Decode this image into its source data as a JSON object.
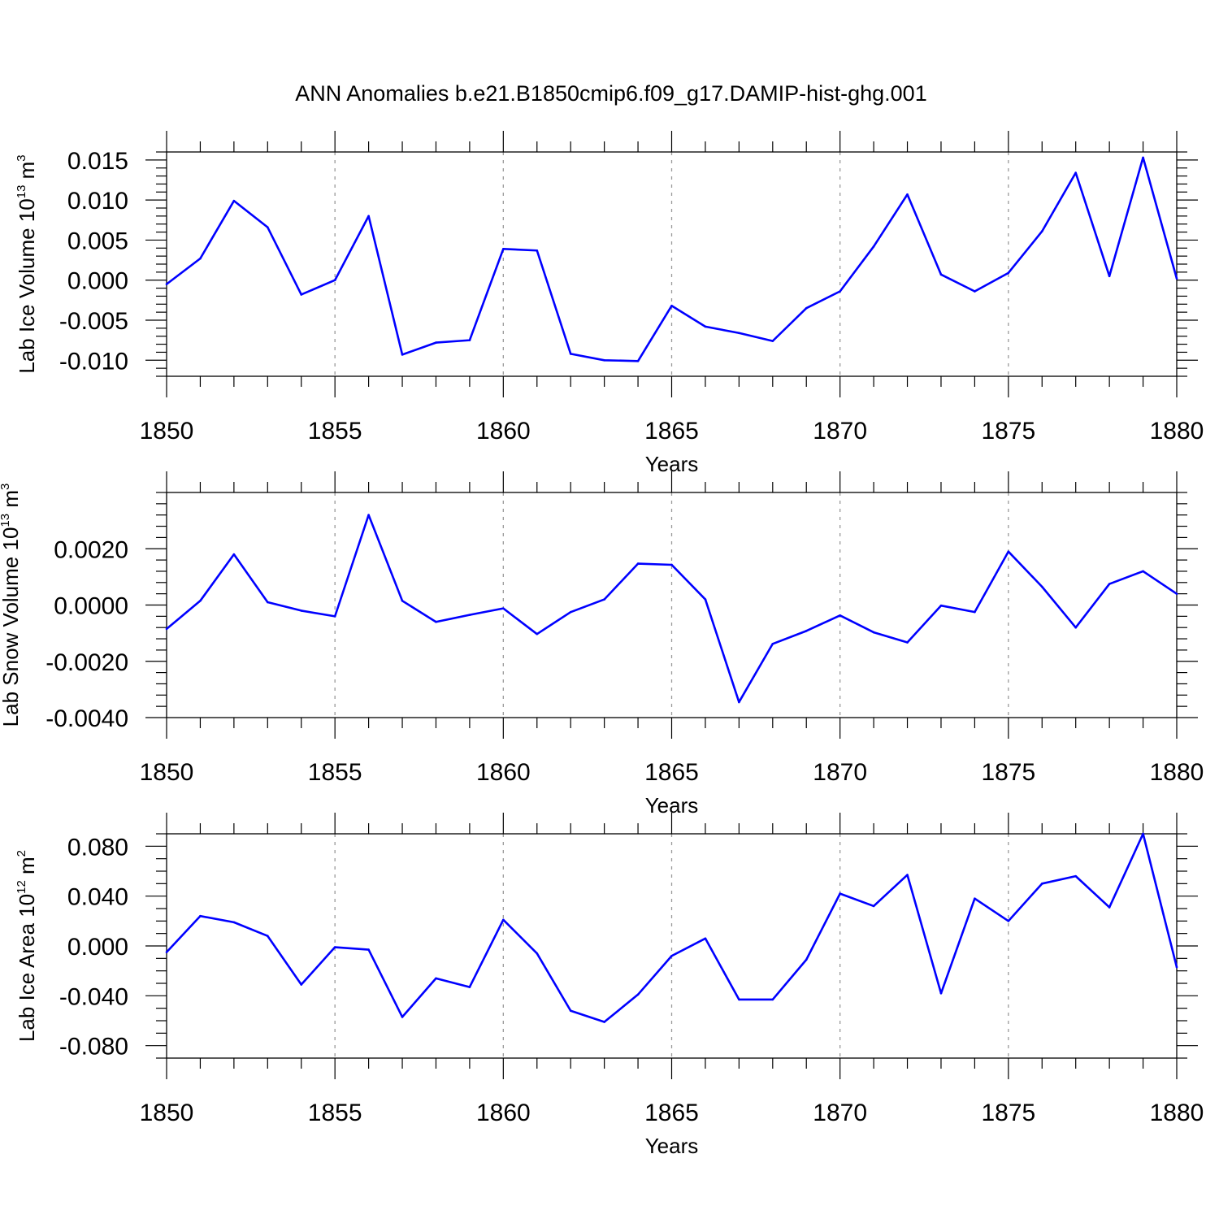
{
  "colors": {
    "line": "#0000ff",
    "axis": "#000000",
    "grid": "#9a9a9a"
  },
  "figure_title": "ANN Anomalies b.e21.B1850cmip6.f09_g17.DAMIP-hist-ghg.001",
  "chart_data": [
    {
      "type": "line",
      "title": "ANN Anomalies b.e21.B1850cmip6.f09_g17.DAMIP-hist-ghg.001",
      "xlabel": "Years",
      "ylabel": {
        "main": "Lab Ice Volume 10",
        "exponent": "13",
        "unit": " m",
        "unit_exponent": "3"
      },
      "xlim": [
        1850,
        1880
      ],
      "ylim": [
        -0.012,
        0.016
      ],
      "x_ticks": [
        1850,
        1855,
        1860,
        1865,
        1870,
        1875,
        1880
      ],
      "x_tick_labels": [
        "1850",
        "1855",
        "1860",
        "1865",
        "1870",
        "1875",
        "1880"
      ],
      "y_ticks": [
        -0.01,
        -0.005,
        0.0,
        0.005,
        0.01,
        0.015
      ],
      "y_tick_labels": [
        "-0.010",
        "-0.005",
        "0.000",
        "0.005",
        "0.010",
        "0.015"
      ],
      "y_minor_step": 0.001,
      "grid": "vertical dashed at major x ticks",
      "x": [
        1850,
        1851,
        1852,
        1853,
        1854,
        1855,
        1856,
        1857,
        1858,
        1859,
        1860,
        1861,
        1862,
        1863,
        1864,
        1865,
        1866,
        1867,
        1868,
        1869,
        1870,
        1871,
        1872,
        1873,
        1874,
        1875,
        1876,
        1877,
        1878,
        1879,
        1880
      ],
      "series": [
        {
          "name": "Lab Ice Volume",
          "values": [
            -0.0005,
            0.0027,
            0.0099,
            0.0066,
            -0.0018,
            0.0,
            0.008,
            -0.0093,
            -0.0078,
            -0.0075,
            0.0039,
            0.0037,
            -0.0092,
            -0.01,
            -0.0101,
            -0.0032,
            -0.0058,
            -0.0066,
            -0.0076,
            -0.0035,
            -0.0014,
            0.0042,
            0.0107,
            0.0007,
            -0.0014,
            0.0009,
            0.0061,
            0.0134,
            0.0005,
            0.0153,
            0.0002
          ]
        }
      ]
    },
    {
      "type": "line",
      "xlabel": "Years",
      "ylabel": {
        "main": "Lab Snow Volume 10",
        "exponent": "13",
        "unit": " m",
        "unit_exponent": "3"
      },
      "xlim": [
        1850,
        1880
      ],
      "ylim": [
        -0.004,
        0.004
      ],
      "x_ticks": [
        1850,
        1855,
        1860,
        1865,
        1870,
        1875,
        1880
      ],
      "x_tick_labels": [
        "1850",
        "1855",
        "1860",
        "1865",
        "1870",
        "1875",
        "1880"
      ],
      "y_ticks": [
        -0.004,
        -0.002,
        0.0,
        0.002
      ],
      "y_tick_labels": [
        "-0.0040",
        "-0.0020",
        "0.0000",
        "0.0020"
      ],
      "y_minor_step": 0.0004,
      "grid": "vertical dashed at major x ticks",
      "x": [
        1850,
        1851,
        1852,
        1853,
        1854,
        1855,
        1856,
        1857,
        1858,
        1859,
        1860,
        1861,
        1862,
        1863,
        1864,
        1865,
        1866,
        1867,
        1868,
        1869,
        1870,
        1871,
        1872,
        1873,
        1874,
        1875,
        1876,
        1877,
        1878,
        1879,
        1880
      ],
      "series": [
        {
          "name": "Lab Snow Volume",
          "values": [
            -0.00085,
            0.00015,
            0.0018,
            0.0001,
            -0.0002,
            -0.0004,
            0.0032,
            0.00015,
            -0.0006,
            -0.00035,
            -0.00012,
            -0.00103,
            -0.00025,
            0.0002,
            0.00147,
            0.00143,
            0.0002,
            -0.00345,
            -0.00138,
            -0.00092,
            -0.00037,
            -0.00097,
            -0.00133,
            -2e-05,
            -0.00025,
            0.0019,
            0.00065,
            -0.0008,
            0.00075,
            0.0012,
            0.0004
          ]
        }
      ]
    },
    {
      "type": "line",
      "xlabel": "Years",
      "ylabel": {
        "main": "Lab Ice Area 10",
        "exponent": "12",
        "unit": " m",
        "unit_exponent": "2"
      },
      "xlim": [
        1850,
        1880
      ],
      "ylim": [
        -0.09,
        0.09
      ],
      "x_ticks": [
        1850,
        1855,
        1860,
        1865,
        1870,
        1875,
        1880
      ],
      "x_tick_labels": [
        "1850",
        "1855",
        "1860",
        "1865",
        "1870",
        "1875",
        "1880"
      ],
      "y_ticks": [
        -0.08,
        -0.04,
        0.0,
        0.04,
        0.08
      ],
      "y_tick_labels": [
        "-0.080",
        "-0.040",
        "0.000",
        "0.040",
        "0.080"
      ],
      "y_minor_step": 0.01,
      "grid": "vertical dashed at major x ticks",
      "x": [
        1850,
        1851,
        1852,
        1853,
        1854,
        1855,
        1856,
        1857,
        1858,
        1859,
        1860,
        1861,
        1862,
        1863,
        1864,
        1865,
        1866,
        1867,
        1868,
        1869,
        1870,
        1871,
        1872,
        1873,
        1874,
        1875,
        1876,
        1877,
        1878,
        1879,
        1880
      ],
      "series": [
        {
          "name": "Lab Ice Area",
          "values": [
            -0.005,
            0.024,
            0.019,
            0.008,
            -0.031,
            -0.001,
            -0.003,
            -0.057,
            -0.026,
            -0.033,
            0.021,
            -0.006,
            -0.052,
            -0.061,
            -0.039,
            -0.008,
            0.006,
            -0.043,
            -0.043,
            -0.011,
            0.042,
            0.032,
            0.057,
            -0.038,
            0.038,
            0.02,
            0.05,
            0.056,
            0.031,
            0.09,
            -0.017
          ]
        }
      ]
    }
  ]
}
